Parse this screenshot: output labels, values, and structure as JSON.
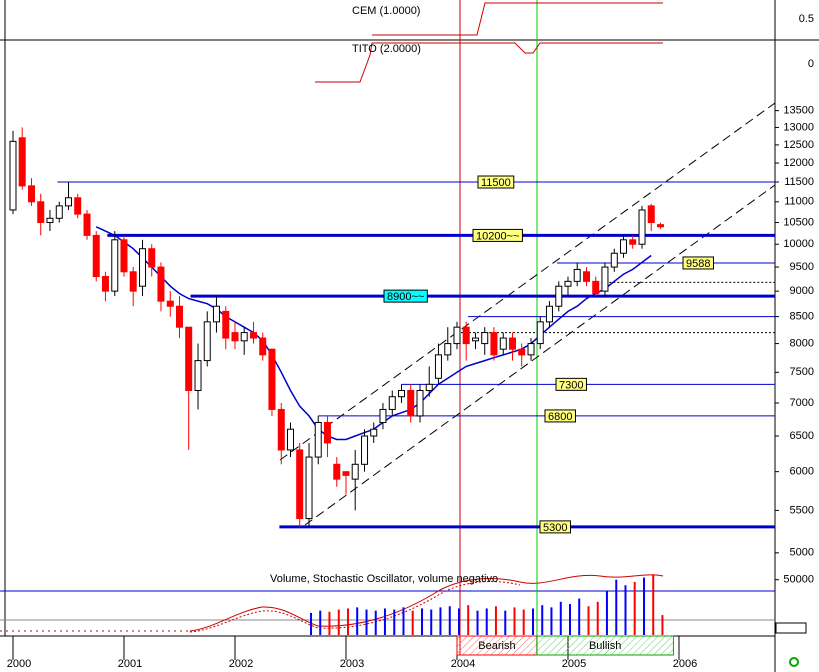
{
  "chart_data": {
    "type": "candlestick",
    "x": [
      2000.0,
      2000.083,
      2000.167,
      2000.25,
      2000.333,
      2000.417,
      2000.5,
      2000.583,
      2000.667,
      2000.75,
      2000.833,
      2000.917,
      2001.0,
      2001.083,
      2001.167,
      2001.25,
      2001.333,
      2001.417,
      2001.5,
      2001.583,
      2001.667,
      2001.75,
      2001.833,
      2001.917,
      2002.0,
      2002.083,
      2002.167,
      2002.25,
      2002.333,
      2002.417,
      2002.5,
      2002.583,
      2002.667,
      2002.75,
      2002.833,
      2002.917,
      2003.0,
      2003.083,
      2003.167,
      2003.25,
      2003.333,
      2003.417,
      2003.5,
      2003.583,
      2003.667,
      2003.75,
      2003.833,
      2003.917,
      2004.0,
      2004.083,
      2004.167,
      2004.25,
      2004.333,
      2004.417,
      2004.5,
      2004.583,
      2004.667,
      2004.75,
      2004.833,
      2004.917,
      2005.0,
      2005.083,
      2005.167,
      2005.25,
      2005.333,
      2005.417,
      2005.5,
      2005.583,
      2005.667,
      2005.75,
      2005.833
    ],
    "open": [
      10800,
      12700,
      11400,
      11000,
      10500,
      10600,
      10900,
      11100,
      10700,
      10200,
      9300,
      9000,
      10100,
      9400,
      9100,
      9900,
      9500,
      8800,
      8700,
      8300,
      7200,
      7700,
      8400,
      8600,
      8200,
      8050,
      8200,
      8100,
      7900,
      6900,
      6300,
      6300,
      5400,
      6200,
      6700,
      6100,
      6000,
      5900,
      6100,
      6500,
      6700,
      6900,
      7100,
      7200,
      6800,
      7200,
      7400,
      7800,
      8000,
      8300,
      8050,
      8000,
      8200,
      7900,
      8100,
      7900,
      7800,
      8000,
      8400,
      8700,
      9100,
      9200,
      9400,
      9200,
      9000,
      9500,
      9800,
      10100,
      10000,
      10900,
      10450
    ],
    "high": [
      12900,
      13000,
      11600,
      11200,
      10800,
      11000,
      11500,
      11200,
      10800,
      10300,
      9400,
      10300,
      10200,
      9500,
      10100,
      10000,
      9600,
      9000,
      8900,
      8300,
      8000,
      8600,
      8900,
      8700,
      8400,
      8300,
      8400,
      8200,
      7900,
      7000,
      6700,
      6400,
      6400,
      6800,
      6800,
      6200,
      6000,
      6300,
      6600,
      6700,
      7000,
      7200,
      7300,
      7300,
      7300,
      7600,
      8000,
      8300,
      8400,
      8400,
      8200,
      8300,
      8300,
      8200,
      8200,
      8000,
      8100,
      8500,
      8800,
      9200,
      9300,
      9600,
      9500,
      9300,
      9600,
      9900,
      10200,
      10200,
      10900,
      10950,
      10500
    ],
    "low": [
      10700,
      11300,
      10900,
      10200,
      10300,
      10500,
      10800,
      10600,
      10100,
      9200,
      8800,
      8900,
      9300,
      8700,
      8900,
      9300,
      8600,
      8500,
      8100,
      6300,
      6900,
      7600,
      8200,
      7900,
      7900,
      7800,
      8000,
      7700,
      6800,
      6100,
      6200,
      5300,
      5300,
      6100,
      6200,
      5800,
      5700,
      5500,
      6000,
      6400,
      6600,
      6800,
      7000,
      6700,
      6700,
      7100,
      7300,
      7700,
      7900,
      7700,
      7900,
      7800,
      7700,
      7800,
      7700,
      7600,
      7700,
      7900,
      8300,
      8600,
      8900,
      9100,
      9100,
      8900,
      8900,
      9400,
      9700,
      9900,
      9900,
      10300,
      10350
    ],
    "close": [
      12600,
      11400,
      11000,
      10500,
      10600,
      10900,
      11100,
      10700,
      10200,
      9300,
      9000,
      10100,
      9400,
      9000,
      9900,
      9500,
      8800,
      8700,
      8300,
      7200,
      7700,
      8400,
      8700,
      8100,
      8050,
      8200,
      8100,
      7800,
      6900,
      6300,
      6600,
      5400,
      6200,
      6700,
      6400,
      5900,
      5950,
      6100,
      6500,
      6600,
      6900,
      7100,
      7200,
      6800,
      7200,
      7300,
      7800,
      8000,
      8300,
      8000,
      8100,
      8200,
      7800,
      8100,
      7900,
      7800,
      8000,
      8400,
      8700,
      9100,
      9200,
      9450,
      9200,
      8950,
      9500,
      9800,
      10100,
      10000,
      10800,
      10500,
      10400
    ],
    "up_color": "#ffffff",
    "down_color": "#ff0000",
    "moving_average": {
      "color": "#0000cc",
      "values": [
        null,
        null,
        null,
        null,
        null,
        null,
        null,
        null,
        null,
        10400,
        10300,
        10200,
        10050,
        9900,
        9700,
        9500,
        9300,
        9100,
        8950,
        8850,
        8800,
        8750,
        8650,
        8500,
        8400,
        8300,
        8200,
        8050,
        7800,
        7500,
        7200,
        6950,
        6800,
        6600,
        6500,
        6450,
        6450,
        6500,
        6550,
        6600,
        6700,
        6800,
        6850,
        6900,
        7000,
        7150,
        7300,
        7400,
        7500,
        7600,
        7650,
        7700,
        7750,
        7800,
        7850,
        7900,
        8000,
        8150,
        8300,
        8450,
        8600,
        8700,
        8850,
        8950,
        9050,
        9200,
        9350,
        9450,
        9600,
        9750,
        null
      ]
    },
    "log_scale": true,
    "ylim": [
      4800,
      14300
    ],
    "yticks": [
      5000,
      5500,
      6000,
      6500,
      7000,
      7500,
      8000,
      8500,
      9000,
      9500,
      10000,
      10500,
      11000,
      11500,
      12000,
      12500,
      13000,
      13500
    ],
    "xlim": [
      1999.883,
      2006.865
    ],
    "xticks": [
      2000,
      2001,
      2002,
      2003,
      2004,
      2005,
      2006
    ],
    "levels": [
      {
        "value": 11500,
        "from": 2000.4,
        "color": "#0000cc",
        "thick": false,
        "label_fill": "#ffff80"
      },
      {
        "value": 10200,
        "label": "10200~~",
        "from": 2000.85,
        "color": "#0000cc",
        "thick": true,
        "label_fill": "#ffff80"
      },
      {
        "value": 9588,
        "from": 2004.9,
        "color": "#0000cc",
        "thick": false,
        "label_fill": "#ffff80"
      },
      {
        "value": 8900,
        "label": "8900~~",
        "from": 2001.6,
        "color": "#0000cc",
        "thick": true,
        "label_fill": "#00ffff"
      },
      {
        "value": 7300,
        "from": 2003.5,
        "color": "#0000cc",
        "thick": false,
        "label_fill": "#ffff80"
      },
      {
        "value": 6800,
        "from": 2002.75,
        "color": "#0000cc",
        "thick": false,
        "label_fill": "#ffff80"
      },
      {
        "value": 5300,
        "from": 2002.4,
        "color": "#0000cc",
        "thick": true,
        "label_fill": "#ffff80"
      }
    ],
    "guides": [
      {
        "value": 8500,
        "from": 2004.1,
        "dotted": false
      },
      {
        "value": 8200,
        "from": 2004.0,
        "dotted": true
      },
      {
        "value": 9180,
        "from": 2005.3,
        "dotted": true
      }
    ],
    "cem": {
      "title": "CEM (1.0000)",
      "yticks": [
        0.5
      ]
    },
    "tito": {
      "title": "TITO (2.0000)",
      "yticks": [
        0
      ]
    },
    "volume": {
      "title": "Volume, Stochastic Oscillator, volume negativo",
      "ylim": [
        0,
        57000
      ],
      "yticks": [
        50000
      ],
      "up_color": "#0000ff",
      "down_color": "#ff0000",
      "values": [
        null,
        null,
        null,
        null,
        null,
        null,
        null,
        null,
        null,
        null,
        null,
        null,
        null,
        null,
        null,
        null,
        null,
        null,
        null,
        null,
        null,
        null,
        null,
        null,
        null,
        null,
        null,
        null,
        null,
        null,
        null,
        null,
        20000,
        22000,
        21000,
        23000,
        24000,
        25000,
        23000,
        22000,
        24000,
        23000,
        25000,
        22000,
        24000,
        23000,
        25000,
        26000,
        24000,
        27000,
        22000,
        24000,
        26000,
        22000,
        25000,
        23000,
        24000,
        27000,
        25000,
        30000,
        28000,
        33000,
        26000,
        30000,
        40000,
        50000,
        45000,
        48000,
        52000,
        55000,
        18000
      ]
    },
    "zones": [
      {
        "label": "Bearish",
        "from": 2004.0,
        "to": 2004.72,
        "color": "#ff0000"
      },
      {
        "label": "Bullish",
        "from": 2004.72,
        "to": 2005.95,
        "color": "#00aa00"
      }
    ]
  }
}
